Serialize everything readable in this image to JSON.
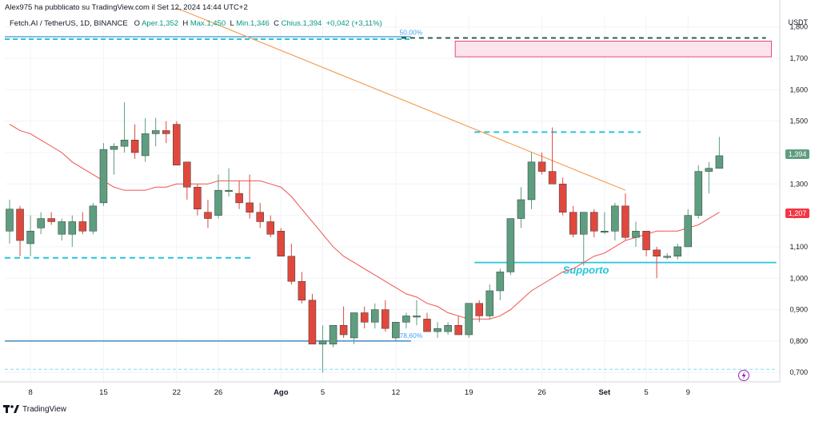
{
  "header": {
    "published": "Alex975 ha pubblicato su TradingView.com il Set 12, 2024 14:44 UTC+2",
    "symbol": "Fetch.AI / TetherUS, 1D, BINANCE",
    "ohlc": [
      {
        "label": "O",
        "value": "Aper.1,352"
      },
      {
        "label": "H",
        "value": "Max.1,450"
      },
      {
        "label": "L",
        "value": "Min.1,346"
      },
      {
        "label": "C",
        "value": "Chius.1,394"
      },
      {
        "label": "",
        "value": "+0,042 (+3,11%)"
      }
    ]
  },
  "footer": {
    "brand": "TradingView"
  },
  "colors": {
    "up": "#5e9d7f",
    "down": "#e0483d",
    "ma": "#ef5350",
    "trend": "#f59c4e",
    "cyan": "#26c6da",
    "blue": "#1976b8",
    "pink_fill": "#fce4ec",
    "pink_stroke": "#e91e63",
    "grid": "#f0f3fa",
    "current_tag": "#5e9d7f",
    "ma_tag": "#f23645"
  },
  "chart_data": {
    "type": "candlestick",
    "y_axis_label": "USDT",
    "y_ticks": [
      "0,700",
      "0,800",
      "0,900",
      "1,000",
      "1,100",
      "1,200",
      "1,300",
      "1,400",
      "1,500",
      "1,600",
      "1,700",
      "1,800"
    ],
    "y_range": [
      0.67,
      1.84
    ],
    "x_ticks": [
      "8",
      "15",
      "22",
      "26",
      "Ago",
      "5",
      "12",
      "19",
      "26",
      "Set",
      "5",
      "9"
    ],
    "x_tick_index": [
      2,
      9,
      16,
      20,
      26,
      30,
      37,
      44,
      51,
      57,
      61,
      65
    ],
    "current_price": "1,394",
    "ma_price": "1,207",
    "candles": [
      {
        "o": 1.15,
        "h": 1.25,
        "l": 1.11,
        "c": 1.22
      },
      {
        "o": 1.22,
        "h": 1.23,
        "l": 1.07,
        "c": 1.12
      },
      {
        "o": 1.11,
        "h": 1.2,
        "l": 1.07,
        "c": 1.15
      },
      {
        "o": 1.16,
        "h": 1.21,
        "l": 1.14,
        "c": 1.19
      },
      {
        "o": 1.19,
        "h": 1.21,
        "l": 1.17,
        "c": 1.18
      },
      {
        "o": 1.14,
        "h": 1.19,
        "l": 1.12,
        "c": 1.18
      },
      {
        "o": 1.14,
        "h": 1.2,
        "l": 1.1,
        "c": 1.18
      },
      {
        "o": 1.18,
        "h": 1.21,
        "l": 1.14,
        "c": 1.15
      },
      {
        "o": 1.15,
        "h": 1.24,
        "l": 1.14,
        "c": 1.23
      },
      {
        "o": 1.24,
        "h": 1.43,
        "l": 1.23,
        "c": 1.41
      },
      {
        "o": 1.41,
        "h": 1.43,
        "l": 1.33,
        "c": 1.42
      },
      {
        "o": 1.42,
        "h": 1.56,
        "l": 1.4,
        "c": 1.44
      },
      {
        "o": 1.44,
        "h": 1.49,
        "l": 1.38,
        "c": 1.4
      },
      {
        "o": 1.39,
        "h": 1.51,
        "l": 1.37,
        "c": 1.46
      },
      {
        "o": 1.46,
        "h": 1.51,
        "l": 1.42,
        "c": 1.47
      },
      {
        "o": 1.47,
        "h": 1.5,
        "l": 1.43,
        "c": 1.46
      },
      {
        "o": 1.49,
        "h": 1.5,
        "l": 1.36,
        "c": 1.36
      },
      {
        "o": 1.37,
        "h": 1.37,
        "l": 1.25,
        "c": 1.29
      },
      {
        "o": 1.29,
        "h": 1.3,
        "l": 1.2,
        "c": 1.22
      },
      {
        "o": 1.21,
        "h": 1.25,
        "l": 1.16,
        "c": 1.19
      },
      {
        "o": 1.2,
        "h": 1.33,
        "l": 1.19,
        "c": 1.28
      },
      {
        "o": 1.28,
        "h": 1.35,
        "l": 1.26,
        "c": 1.28
      },
      {
        "o": 1.27,
        "h": 1.31,
        "l": 1.22,
        "c": 1.24
      },
      {
        "o": 1.24,
        "h": 1.33,
        "l": 1.19,
        "c": 1.21
      },
      {
        "o": 1.21,
        "h": 1.24,
        "l": 1.16,
        "c": 1.18
      },
      {
        "o": 1.18,
        "h": 1.2,
        "l": 1.13,
        "c": 1.14
      },
      {
        "o": 1.15,
        "h": 1.16,
        "l": 1.07,
        "c": 1.07
      },
      {
        "o": 1.07,
        "h": 1.11,
        "l": 0.98,
        "c": 0.99
      },
      {
        "o": 0.99,
        "h": 1.02,
        "l": 0.92,
        "c": 0.93
      },
      {
        "o": 0.93,
        "h": 0.95,
        "l": 0.79,
        "c": 0.79
      },
      {
        "o": 0.79,
        "h": 0.85,
        "l": 0.7,
        "c": 0.8
      },
      {
        "o": 0.79,
        "h": 0.85,
        "l": 0.78,
        "c": 0.85
      },
      {
        "o": 0.85,
        "h": 0.91,
        "l": 0.81,
        "c": 0.82
      },
      {
        "o": 0.81,
        "h": 0.89,
        "l": 0.79,
        "c": 0.89
      },
      {
        "o": 0.89,
        "h": 0.91,
        "l": 0.84,
        "c": 0.86
      },
      {
        "o": 0.86,
        "h": 0.92,
        "l": 0.84,
        "c": 0.9
      },
      {
        "o": 0.9,
        "h": 0.93,
        "l": 0.83,
        "c": 0.84
      },
      {
        "o": 0.81,
        "h": 0.86,
        "l": 0.8,
        "c": 0.86
      },
      {
        "o": 0.86,
        "h": 0.89,
        "l": 0.84,
        "c": 0.88
      },
      {
        "o": 0.88,
        "h": 0.93,
        "l": 0.85,
        "c": 0.88
      },
      {
        "o": 0.87,
        "h": 0.89,
        "l": 0.83,
        "c": 0.83
      },
      {
        "o": 0.83,
        "h": 0.86,
        "l": 0.81,
        "c": 0.84
      },
      {
        "o": 0.83,
        "h": 0.86,
        "l": 0.82,
        "c": 0.85
      },
      {
        "o": 0.85,
        "h": 0.88,
        "l": 0.82,
        "c": 0.82
      },
      {
        "o": 0.82,
        "h": 0.92,
        "l": 0.81,
        "c": 0.92
      },
      {
        "o": 0.92,
        "h": 0.93,
        "l": 0.86,
        "c": 0.88
      },
      {
        "o": 0.88,
        "h": 0.98,
        "l": 0.87,
        "c": 0.96
      },
      {
        "o": 0.96,
        "h": 1.03,
        "l": 0.93,
        "c": 1.02
      },
      {
        "o": 1.02,
        "h": 1.19,
        "l": 1.01,
        "c": 1.19
      },
      {
        "o": 1.19,
        "h": 1.29,
        "l": 1.16,
        "c": 1.25
      },
      {
        "o": 1.25,
        "h": 1.4,
        "l": 1.22,
        "c": 1.37
      },
      {
        "o": 1.37,
        "h": 1.4,
        "l": 1.33,
        "c": 1.34
      },
      {
        "o": 1.34,
        "h": 1.48,
        "l": 1.3,
        "c": 1.3
      },
      {
        "o": 1.3,
        "h": 1.32,
        "l": 1.2,
        "c": 1.21
      },
      {
        "o": 1.21,
        "h": 1.23,
        "l": 1.13,
        "c": 1.14
      },
      {
        "o": 1.14,
        "h": 1.21,
        "l": 1.04,
        "c": 1.21
      },
      {
        "o": 1.21,
        "h": 1.22,
        "l": 1.13,
        "c": 1.15
      },
      {
        "o": 1.15,
        "h": 1.21,
        "l": 1.14,
        "c": 1.15
      },
      {
        "o": 1.15,
        "h": 1.24,
        "l": 1.12,
        "c": 1.23
      },
      {
        "o": 1.23,
        "h": 1.27,
        "l": 1.12,
        "c": 1.13
      },
      {
        "o": 1.13,
        "h": 1.18,
        "l": 1.1,
        "c": 1.15
      },
      {
        "o": 1.15,
        "h": 1.15,
        "l": 1.07,
        "c": 1.09
      },
      {
        "o": 1.09,
        "h": 1.1,
        "l": 1.0,
        "c": 1.07
      },
      {
        "o": 1.07,
        "h": 1.08,
        "l": 1.06,
        "c": 1.07
      },
      {
        "o": 1.07,
        "h": 1.11,
        "l": 1.06,
        "c": 1.1
      },
      {
        "o": 1.1,
        "h": 1.22,
        "l": 1.1,
        "c": 1.2
      },
      {
        "o": 1.2,
        "h": 1.36,
        "l": 1.19,
        "c": 1.34
      },
      {
        "o": 1.34,
        "h": 1.37,
        "l": 1.27,
        "c": 1.35
      },
      {
        "o": 1.35,
        "h": 1.45,
        "l": 1.35,
        "c": 1.39
      }
    ],
    "moving_average": [
      1.49,
      1.47,
      1.46,
      1.44,
      1.42,
      1.4,
      1.37,
      1.35,
      1.33,
      1.31,
      1.29,
      1.28,
      1.28,
      1.28,
      1.29,
      1.29,
      1.3,
      1.3,
      1.3,
      1.3,
      1.31,
      1.31,
      1.31,
      1.31,
      1.31,
      1.3,
      1.29,
      1.26,
      1.22,
      1.18,
      1.14,
      1.1,
      1.07,
      1.05,
      1.03,
      1.01,
      0.99,
      0.97,
      0.95,
      0.94,
      0.92,
      0.91,
      0.89,
      0.88,
      0.87,
      0.87,
      0.87,
      0.88,
      0.9,
      0.93,
      0.96,
      0.98,
      1.0,
      1.02,
      1.03,
      1.05,
      1.07,
      1.08,
      1.1,
      1.12,
      1.13,
      1.14,
      1.15,
      1.15,
      1.15,
      1.16,
      1.17,
      1.19,
      1.21
    ],
    "levels": [
      {
        "name": "fib-50-line",
        "label": "50,00%",
        "price": 1.765,
        "from": 0,
        "to": 38,
        "style": "solid-blue-double"
      },
      {
        "name": "fib-50-extension",
        "label": "",
        "price": 1.765,
        "from": 38,
        "to": 72,
        "style": "dashed-dark"
      },
      {
        "name": "resistance-dash",
        "label": "",
        "price": 1.465,
        "from": 45,
        "to": 60,
        "style": "dashed-cyan"
      },
      {
        "name": "left-support-dash",
        "label": "",
        "price": 1.065,
        "from": 0,
        "to": 23,
        "style": "dashed-cyan"
      },
      {
        "name": "fib-786-line",
        "label": "78,60%",
        "price": 0.8,
        "from": 0,
        "to": 38,
        "style": "solid-blue"
      },
      {
        "name": "support-line",
        "label": "Supporto",
        "price": 1.05,
        "from": 45,
        "to": 73,
        "style": "solid-cyan"
      },
      {
        "name": "bottom-dash",
        "label": "",
        "price": 0.71,
        "from": 0,
        "to": 73,
        "style": "dashed-lightcyan"
      }
    ],
    "zone": {
      "name": "pink-resistance-zone",
      "y_top": 1.755,
      "y_bottom": 1.705,
      "from": 43,
      "to": 73
    },
    "trendline": {
      "x1": 16,
      "y1": 1.86,
      "x2": 59,
      "y2": 1.28
    }
  }
}
